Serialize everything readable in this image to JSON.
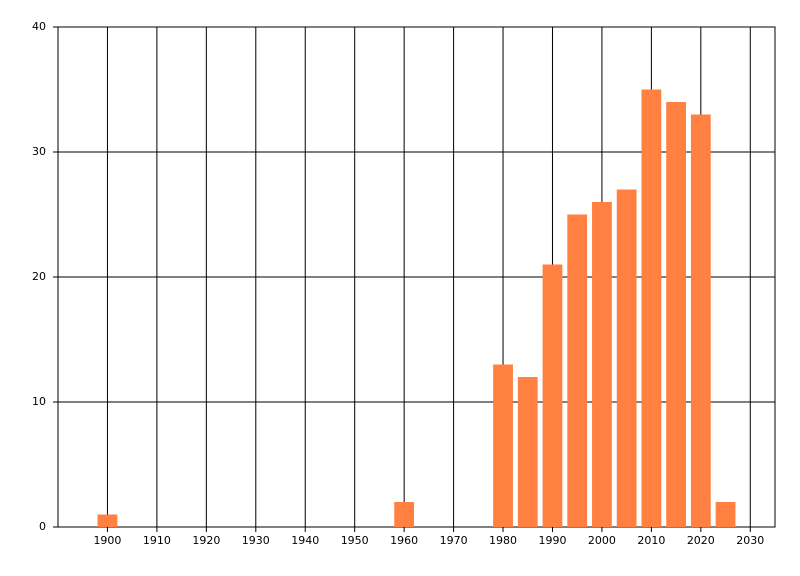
{
  "chart_data": {
    "type": "bar",
    "x": [
      1900,
      1960,
      1980,
      1985,
      1990,
      1995,
      2000,
      2005,
      2010,
      2015,
      2020,
      2025
    ],
    "values": [
      1,
      2,
      13,
      12,
      21,
      25,
      26,
      27,
      35,
      34,
      33,
      2
    ],
    "color": "#ff8040",
    "xlim": [
      1890,
      2035
    ],
    "xticks": [
      1900,
      1910,
      1920,
      1930,
      1940,
      1950,
      1960,
      1970,
      1980,
      1990,
      2000,
      2010,
      2020,
      2030
    ],
    "ylim": [
      0,
      40
    ],
    "yticks": [
      0,
      10,
      20,
      30,
      40
    ],
    "grid": true
  }
}
